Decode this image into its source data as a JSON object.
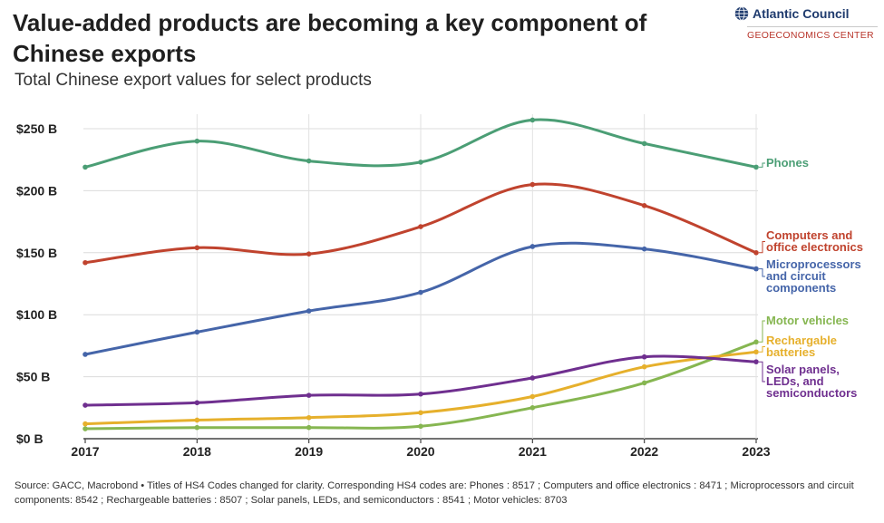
{
  "header": {
    "title": "Value-added products are becoming a key component of Chinese exports",
    "subtitle": "Total Chinese export values for select products"
  },
  "brand": {
    "name": "Atlantic Council",
    "center": "GEOECONOMICS CENTER"
  },
  "source": "Source: GACC, Macrobond • Titles of HS4 Codes changed for clarity. Corresponding HS4 codes are: Phones : 8517 ; Computers and office electronics : 8471 ; Microprocessors and circuit components: 8542 ; Rechargeable batteries : 8507 ; Solar panels, LEDs, and semiconductors : 8541 ; Motor vehicles: 8703",
  "chart_data": {
    "type": "line",
    "title": "Value-added products are becoming a key component of Chinese exports",
    "subtitle": "Total Chinese export values for select products",
    "x": [
      2017,
      2018,
      2019,
      2020,
      2021,
      2022,
      2023
    ],
    "xticks": [
      "2017",
      "2018",
      "2019",
      "2020",
      "2021",
      "2022",
      "2023"
    ],
    "yticks": [
      "$0 B",
      "$50 B",
      "$100 B",
      "$150 B",
      "$200 B",
      "$250 B"
    ],
    "ytick_values": [
      0,
      50,
      100,
      150,
      200,
      250
    ],
    "ylim": [
      0,
      265
    ],
    "xlabel": "",
    "ylabel": "",
    "unit": "billion USD",
    "grid": true,
    "legend": "direct labels at right end of lines",
    "series": [
      {
        "name": "Phones",
        "label_lines": [
          "Phones"
        ],
        "color": "#4b9e75",
        "values": [
          219,
          240,
          224,
          223,
          257,
          238,
          219
        ]
      },
      {
        "name": "Computers and office electronics",
        "label_lines": [
          "Computers and",
          "office electronics"
        ],
        "color": "#c0432e",
        "values": [
          142,
          154,
          149,
          171,
          205,
          188,
          150
        ]
      },
      {
        "name": "Microprocessors and circuit components",
        "label_lines": [
          "Microprocessors",
          "and circuit",
          "components"
        ],
        "color": "#4565a9",
        "values": [
          68,
          86,
          103,
          118,
          155,
          153,
          137
        ]
      },
      {
        "name": "Motor vehicles",
        "label_lines": [
          "Motor vehicles"
        ],
        "color": "#86b651",
        "values": [
          8,
          9,
          9,
          10,
          25,
          45,
          78
        ]
      },
      {
        "name": "Rechargable batteries",
        "label_lines": [
          "Rechargable",
          "batteries"
        ],
        "color": "#e6b02c",
        "values": [
          12,
          15,
          17,
          21,
          34,
          58,
          70
        ]
      },
      {
        "name": "Solar panels, LEDs, and semiconductors",
        "label_lines": [
          "Solar panels,",
          "LEDs, and",
          "semiconductors"
        ],
        "color": "#6f2f8f",
        "values": [
          27,
          29,
          35,
          36,
          49,
          66,
          62
        ]
      }
    ]
  }
}
